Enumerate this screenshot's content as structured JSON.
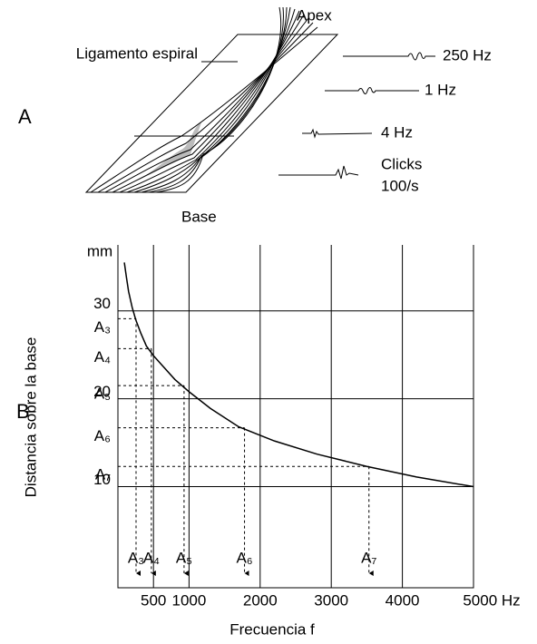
{
  "panel_a": {
    "label": "A",
    "apex": "Apex",
    "base": "Base",
    "ligament": "Ligamento espiral",
    "stimuli": [
      "250 Hz",
      "1  Hz",
      "4  Hz",
      "Clicks",
      "100/s"
    ]
  },
  "chart_data": {
    "type": "line",
    "panel_label": "B",
    "xlabel": "Frecuencia f",
    "ylabel": "Distancia sobre la base",
    "y_unit": "mm",
    "x": [
      90,
      120,
      150,
      200,
      250,
      320,
      400,
      500,
      600,
      800,
      1000,
      1300,
      1700,
      2200,
      2800,
      3500,
      4200,
      5000
    ],
    "values": [
      35.5,
      33.8,
      32.2,
      30.4,
      29,
      27.5,
      26.0,
      24.9,
      24.0,
      22.2,
      20.8,
      18.9,
      16.8,
      15.2,
      13.7,
      12.3,
      11.1,
      10.0
    ],
    "color": "#000000",
    "xlim": [
      0,
      5000
    ],
    "ylim": [
      -1.5,
      37.5
    ],
    "xticks": [
      500,
      1000,
      2000,
      3000,
      4000,
      {
        "value": 5000,
        "label": "5000 Hz"
      }
    ],
    "yticks": [
      10,
      20,
      30
    ],
    "grid": true,
    "points": [
      {
        "label": "A₃",
        "x": 255,
        "y": 29.1
      },
      {
        "label": "A₄",
        "x": 470,
        "y": 25.7
      },
      {
        "label": "A₅",
        "x": 930,
        "y": 21.5
      },
      {
        "label": "A₆",
        "x": 1780,
        "y": 16.7
      },
      {
        "label": "A₇",
        "x": 3530,
        "y": 12.3
      }
    ]
  }
}
